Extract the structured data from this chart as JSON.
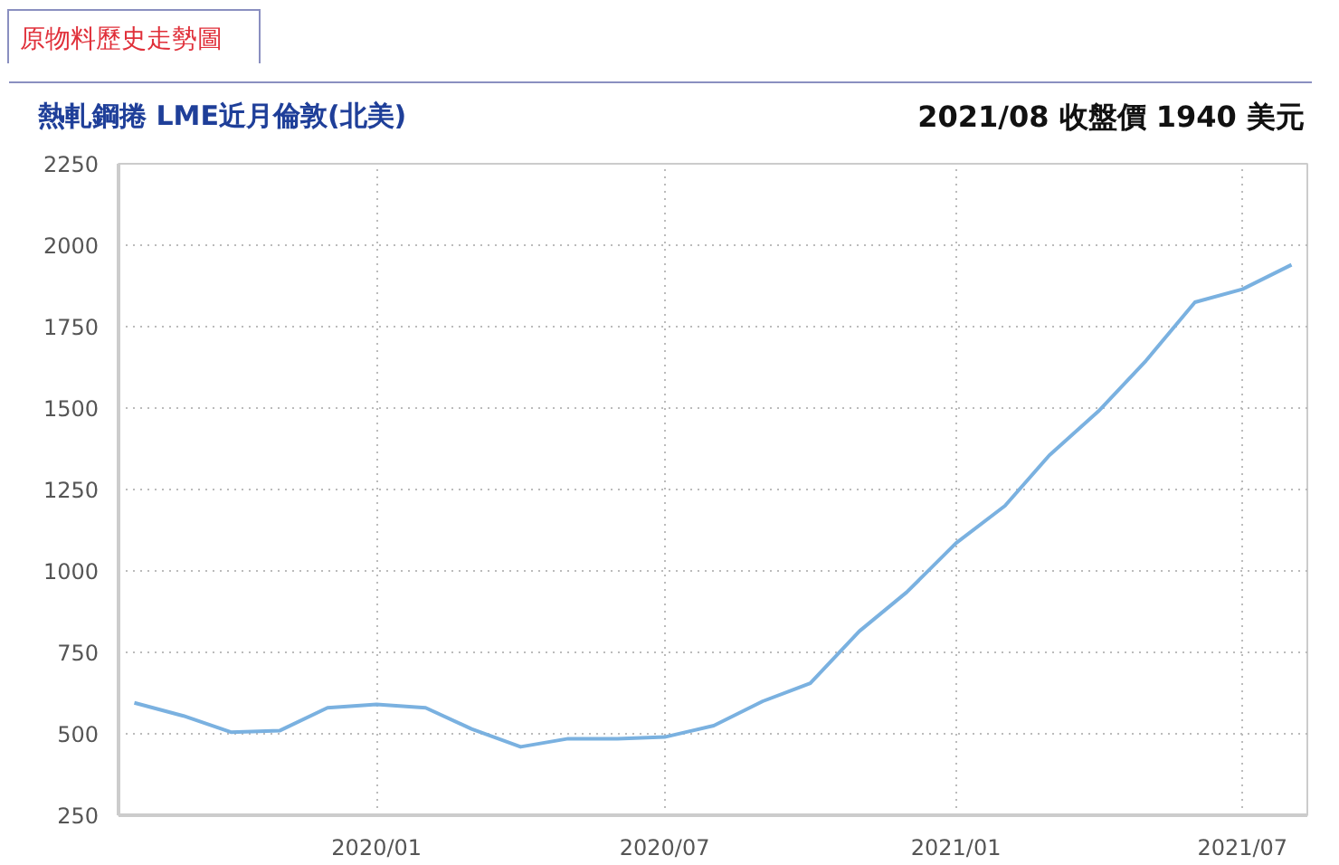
{
  "chart_data": {
    "type": "line",
    "title": "原物料歷史走勢圖",
    "subtitle": "熱軋鋼捲 LME近月倫敦(北美)",
    "annotations": [
      "2021/08 收盤價 1940 美元"
    ],
    "x": [
      "2019-08",
      "2019-09",
      "2019-10",
      "2019-11",
      "2019-12",
      "2020-01",
      "2020-02",
      "2020-03",
      "2020-04",
      "2020-05",
      "2020-06",
      "2020-07",
      "2020-08",
      "2020-09",
      "2020-10",
      "2020-11",
      "2020-12",
      "2021-01",
      "2021-02",
      "2021-03",
      "2021-04",
      "2021-05",
      "2021-06",
      "2021-07",
      "2021-08"
    ],
    "series": [
      {
        "color": "#7ab1e0",
        "values": [
          595,
          555,
          505,
          510,
          580,
          590,
          580,
          515,
          460,
          485,
          485,
          490,
          525,
          600,
          655,
          815,
          935,
          1085,
          1200,
          1355,
          1490,
          1645,
          1825,
          1865,
          1940
        ]
      }
    ],
    "xlim": [
      "2019-07-22",
      "2021-08-11"
    ],
    "xticks": [
      {
        "value": "2020-01",
        "label": "2020/01"
      },
      {
        "value": "2020-07",
        "label": "2020/07"
      },
      {
        "value": "2021-01",
        "label": "2021/01"
      },
      {
        "value": "2021-07",
        "label": "2021/07"
      }
    ],
    "ylim": [
      250,
      2250
    ],
    "yticks": [
      250,
      500,
      750,
      1000,
      1250,
      1500,
      1750,
      2000,
      2250
    ],
    "grid": true,
    "marker": "none",
    "line_style": "solid"
  }
}
